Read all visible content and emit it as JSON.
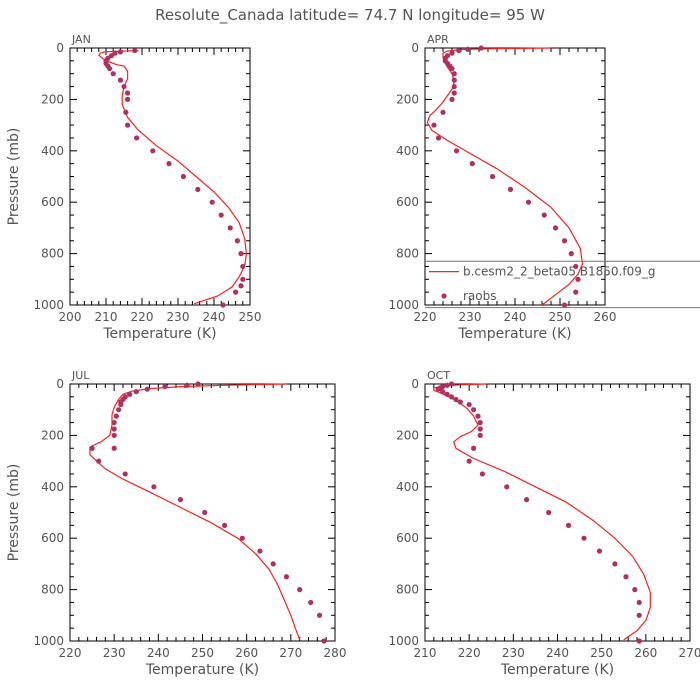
{
  "title": "Resolute_Canada   latitude= 74.7 N longitude= 95 W",
  "colors": {
    "model": "#ff2020",
    "obs": "#b03060",
    "axis": "#000000",
    "text": "#555555"
  },
  "legend": {
    "model_label": "b.cesm2_2_beta05.B1850.f09_g",
    "obs_label": "raobs"
  },
  "chart_data": [
    {
      "type": "line",
      "month": "JAN",
      "xlabel": "Temperature (K)",
      "ylabel": "Pressure (mb)",
      "xlim": [
        200,
        250
      ],
      "xticks": [
        200,
        210,
        220,
        230,
        240,
        250
      ],
      "ylim": [
        1000,
        0
      ],
      "yticks": [
        0,
        200,
        400,
        600,
        800,
        1000
      ],
      "legend": false,
      "series": [
        {
          "name": "b.cesm2_2_beta05.B1850.f09_g",
          "kind": "line",
          "x": [
            219,
            213,
            209.5,
            208.5,
            208,
            209,
            211,
            213,
            215,
            216,
            216,
            215,
            214.5,
            214.5,
            216,
            219,
            224,
            230,
            235,
            240,
            244,
            247,
            248.5,
            249,
            248.5,
            247,
            245,
            241,
            234.5
          ],
          "y": [
            10,
            13,
            15,
            20,
            28,
            40,
            55,
            65,
            70,
            90,
            120,
            150,
            185,
            220,
            270,
            320,
            380,
            440,
            500,
            560,
            620,
            680,
            740,
            800,
            850,
            890,
            930,
            965,
            995
          ]
        },
        {
          "name": "raobs",
          "kind": "points",
          "x": [
            218,
            214,
            212.5,
            211.5,
            210.5,
            210,
            210,
            210.5,
            211,
            212,
            214,
            215,
            216,
            216,
            215.5,
            216,
            218.5,
            223,
            227.5,
            231.5,
            235.5,
            239.5,
            242,
            244.5,
            246.5,
            247.5,
            248,
            248,
            247.5,
            246,
            242.5
          ],
          "y": [
            10,
            15,
            20,
            30,
            40,
            50,
            60,
            70,
            80,
            100,
            125,
            150,
            175,
            200,
            250,
            300,
            350,
            400,
            450,
            500,
            550,
            600,
            650,
            700,
            750,
            800,
            850,
            900,
            925,
            950,
            1000
          ]
        }
      ]
    },
    {
      "type": "line",
      "month": "APR",
      "xlabel": "Temperature (K)",
      "ylabel": "",
      "xlim": [
        220,
        260
      ],
      "xticks": [
        220,
        230,
        240,
        250,
        260
      ],
      "ylim": [
        1000,
        0
      ],
      "yticks": [
        0,
        200,
        400,
        600,
        800,
        1000
      ],
      "legend": true,
      "series": [
        {
          "name": "b.cesm2_2_beta05.B1850.f09_g",
          "kind": "line",
          "x": [
            248,
            234,
            228,
            225,
            224,
            224,
            224.5,
            225,
            226,
            226.5,
            226,
            225,
            224,
            222.5,
            221,
            220.5,
            221.5,
            225,
            230,
            236,
            242,
            248,
            252,
            254.5,
            255,
            254,
            252,
            249,
            246
          ],
          "y": [
            0,
            3,
            6,
            12,
            20,
            35,
            55,
            75,
            100,
            130,
            160,
            185,
            210,
            240,
            265,
            290,
            320,
            360,
            410,
            470,
            540,
            620,
            700,
            780,
            840,
            880,
            920,
            960,
            1000
          ]
        },
        {
          "name": "raobs",
          "kind": "points",
          "x": [
            232.5,
            229.5,
            227.5,
            226,
            225,
            224.5,
            224.5,
            225,
            225.5,
            226,
            226.5,
            226.5,
            226.5,
            226.5,
            226,
            224,
            222,
            223,
            227,
            230.5,
            235,
            239,
            243,
            246.5,
            249,
            251,
            252.5,
            253.5,
            254,
            253.5,
            251
          ],
          "y": [
            0,
            5,
            10,
            20,
            30,
            40,
            50,
            60,
            70,
            80,
            100,
            125,
            150,
            175,
            200,
            250,
            300,
            350,
            400,
            450,
            500,
            550,
            600,
            650,
            700,
            750,
            800,
            850,
            900,
            950,
            1000
          ]
        }
      ]
    },
    {
      "type": "line",
      "month": "JUL",
      "xlabel": "Temperature (K)",
      "ylabel": "Pressure (mb)",
      "xlim": [
        220,
        280
      ],
      "xticks": [
        220,
        230,
        240,
        250,
        260,
        270,
        280
      ],
      "ylim": [
        1000,
        0
      ],
      "yticks": [
        0,
        200,
        400,
        600,
        800,
        1000
      ],
      "legend": false,
      "series": [
        {
          "name": "b.cesm2_2_beta05.B1850.f09_g",
          "kind": "line",
          "x": [
            269,
            255,
            245,
            238,
            234,
            232,
            231,
            230,
            229.5,
            229.5,
            229,
            227,
            224.5,
            224.5,
            226,
            228,
            232,
            238,
            245,
            252,
            258,
            262,
            265,
            267,
            268.5,
            270,
            271,
            272
          ],
          "y": [
            0,
            5,
            10,
            18,
            28,
            40,
            60,
            90,
            120,
            160,
            200,
            225,
            245,
            275,
            300,
            330,
            370,
            420,
            480,
            540,
            600,
            660,
            720,
            780,
            840,
            900,
            950,
            995
          ]
        },
        {
          "name": "raobs",
          "kind": "points",
          "x": [
            249,
            246.5,
            241.5,
            237.5,
            235,
            233.5,
            232.5,
            232,
            231.5,
            231.5,
            231,
            230.5,
            230,
            230,
            230,
            230,
            225,
            226.5,
            232.5,
            239,
            245,
            250.5,
            255,
            259,
            263,
            266,
            269,
            272,
            274.5,
            276.5,
            277.5
          ],
          "y": [
            0,
            5,
            10,
            20,
            30,
            40,
            50,
            60,
            70,
            80,
            100,
            125,
            150,
            175,
            200,
            250,
            250,
            300,
            350,
            400,
            450,
            500,
            550,
            600,
            650,
            700,
            750,
            800,
            850,
            900,
            1000
          ]
        }
      ]
    },
    {
      "type": "line",
      "month": "OCT",
      "xlabel": "Temperature (K)",
      "ylabel": "",
      "xlim": [
        210,
        270
      ],
      "xticks": [
        210,
        220,
        230,
        240,
        250,
        260,
        270
      ],
      "ylim": [
        1000,
        0
      ],
      "yticks": [
        0,
        200,
        400,
        600,
        800,
        1000
      ],
      "legend": false,
      "series": [
        {
          "name": "b.cesm2_2_beta05.B1850.f09_g",
          "kind": "line",
          "x": [
            224,
            218,
            214,
            212,
            212,
            213.5,
            215.5,
            217.5,
            219.5,
            221,
            222,
            220.5,
            218,
            216.5,
            217,
            221,
            228,
            235,
            242,
            248,
            253,
            257,
            259.5,
            261,
            261,
            260,
            258,
            255
          ],
          "y": [
            0,
            3,
            8,
            15,
            25,
            35,
            50,
            70,
            95,
            125,
            160,
            185,
            205,
            225,
            250,
            290,
            340,
            400,
            460,
            530,
            600,
            670,
            740,
            810,
            870,
            920,
            960,
            995
          ]
        },
        {
          "name": "raobs",
          "kind": "points",
          "x": [
            216,
            215,
            214,
            213.5,
            213,
            214,
            215,
            216,
            217,
            218,
            220,
            221,
            222,
            222.5,
            222.5,
            222.5,
            221,
            220,
            223,
            228.5,
            233,
            238,
            242.5,
            246,
            249.5,
            253,
            255.5,
            257.5,
            258.5,
            258.5,
            258.5
          ],
          "y": [
            0,
            5,
            10,
            15,
            20,
            30,
            40,
            50,
            60,
            70,
            80,
            100,
            125,
            150,
            175,
            200,
            250,
            300,
            350,
            400,
            450,
            500,
            550,
            600,
            650,
            700,
            750,
            800,
            850,
            900,
            1000
          ]
        }
      ]
    }
  ]
}
